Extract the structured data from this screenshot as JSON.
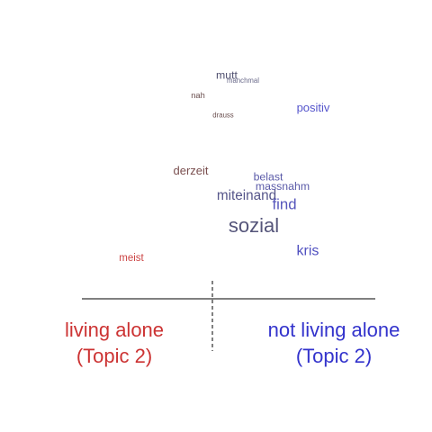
{
  "chart_data": {
    "type": "scatter",
    "title": "",
    "xlabel": "",
    "ylabel": "",
    "groups": [
      {
        "label_line1": "living alone",
        "label_line2": "(Topic 2)",
        "color": "#cc3333"
      },
      {
        "label_line1": "not living alone",
        "label_line2": "(Topic 2)",
        "color": "#3333cc"
      }
    ],
    "words": [
      {
        "text": "mutt",
        "x": 0.08,
        "y": 0.95,
        "weight": 0.35,
        "color": "#4f4f6f"
      },
      {
        "text": "manchmal",
        "x": 0.17,
        "y": 0.93,
        "weight": 0.05,
        "color": "#6a6a8a"
      },
      {
        "text": "nah",
        "x": -0.08,
        "y": 0.85,
        "weight": 0.15,
        "color": "#6a4f4f"
      },
      {
        "text": "drauss",
        "x": 0.06,
        "y": 0.75,
        "weight": 0.05,
        "color": "#6a4f4f"
      },
      {
        "text": "positiv",
        "x": 0.56,
        "y": 0.78,
        "weight": 0.4,
        "color": "#5555cc"
      },
      {
        "text": "derzeit",
        "x": -0.12,
        "y": 0.45,
        "weight": 0.4,
        "color": "#7a4f4f"
      },
      {
        "text": "belast",
        "x": 0.31,
        "y": 0.42,
        "weight": 0.35,
        "color": "#5a5aa8"
      },
      {
        "text": "massnahm",
        "x": 0.39,
        "y": 0.37,
        "weight": 0.35,
        "color": "#5a5aa8"
      },
      {
        "text": "miteinand",
        "x": 0.19,
        "y": 0.32,
        "weight": 0.55,
        "color": "#55558a"
      },
      {
        "text": "find",
        "x": 0.4,
        "y": 0.27,
        "weight": 0.65,
        "color": "#5555bb"
      },
      {
        "text": "sozial",
        "x": 0.23,
        "y": 0.15,
        "weight": 1.0,
        "color": "#55557a"
      },
      {
        "text": "kris",
        "x": 0.53,
        "y": 0.03,
        "weight": 0.6,
        "color": "#5050c0"
      },
      {
        "text": "meist",
        "x": -0.45,
        "y": 0.0,
        "weight": 0.3,
        "color": "#cc4444"
      }
    ]
  }
}
